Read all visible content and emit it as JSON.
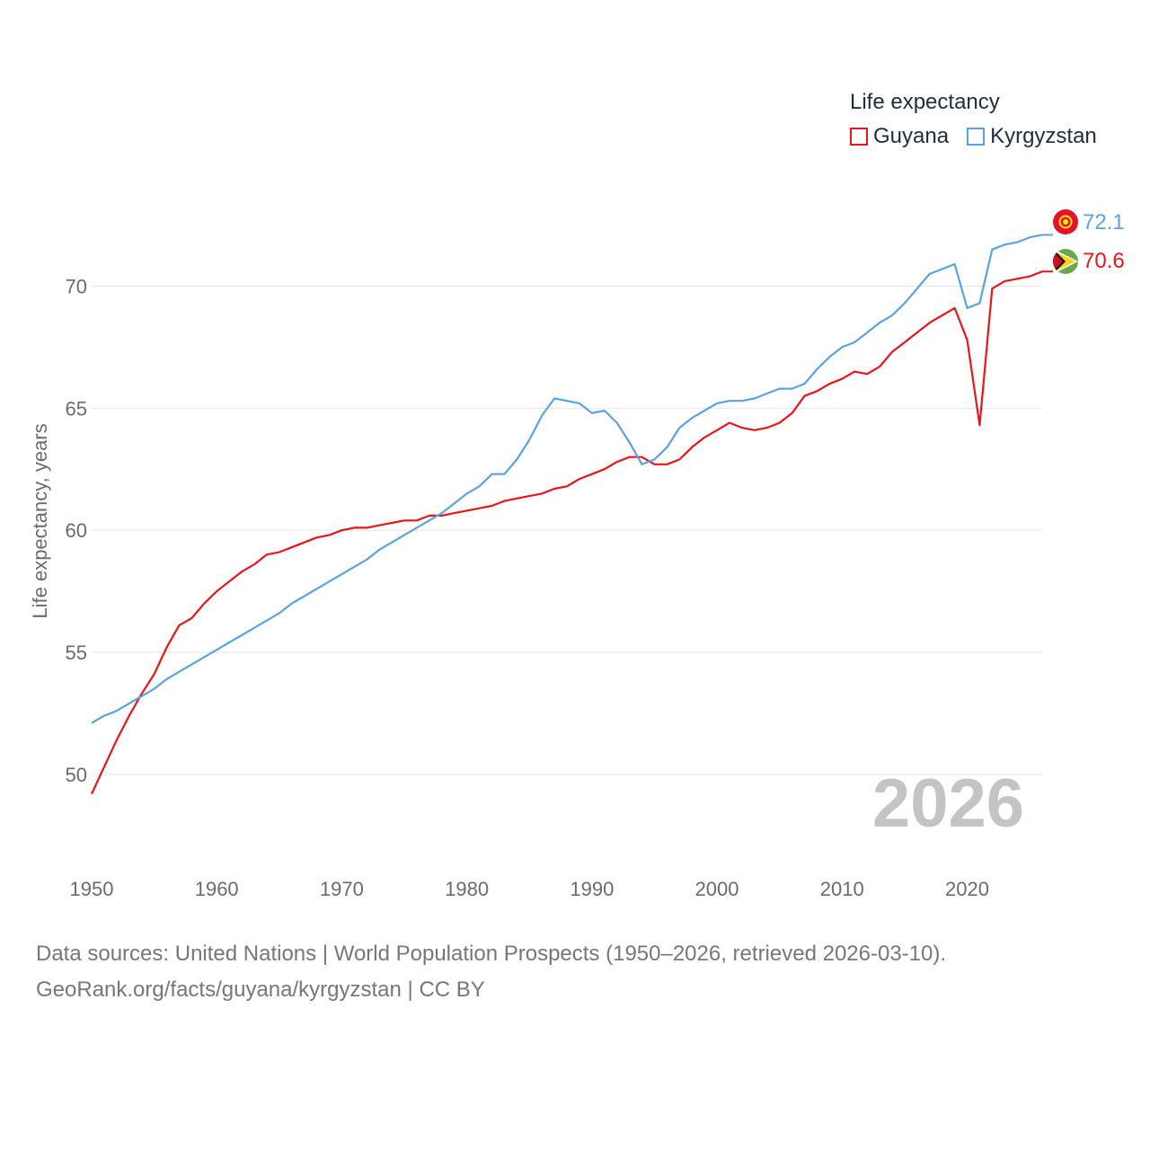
{
  "legend": {
    "title": "Life expectancy",
    "items": [
      {
        "label": "Guyana",
        "color": "#e8151b"
      },
      {
        "label": "Kyrgyzstan",
        "color": "#5ba3e0"
      }
    ]
  },
  "year_label": "2026",
  "source": {
    "line1": "Data sources: United Nations | World Population Prospects (1950–2026, retrieved 2026-03-10).",
    "line2": "GeoRank.org/facts/guyana/kyrgyzstan | CC BY"
  },
  "chart_data": {
    "type": "line",
    "title": "Life expectancy",
    "xlabel": "",
    "ylabel": "Life expectancy, years",
    "xlim": [
      1950,
      2026
    ],
    "ylim": [
      48.3,
      73
    ],
    "xticks": [
      1950,
      1960,
      1970,
      1980,
      1990,
      2000,
      2010,
      2020
    ],
    "yticks": [
      50,
      55,
      60,
      65,
      70
    ],
    "x": [
      1950,
      1951,
      1952,
      1953,
      1954,
      1955,
      1956,
      1957,
      1958,
      1959,
      1960,
      1961,
      1962,
      1963,
      1964,
      1965,
      1966,
      1967,
      1968,
      1969,
      1970,
      1971,
      1972,
      1973,
      1974,
      1975,
      1976,
      1977,
      1978,
      1979,
      1980,
      1981,
      1982,
      1983,
      1984,
      1985,
      1986,
      1987,
      1988,
      1989,
      1990,
      1991,
      1992,
      1993,
      1994,
      1995,
      1996,
      1997,
      1998,
      1999,
      2000,
      2001,
      2002,
      2003,
      2004,
      2005,
      2006,
      2007,
      2008,
      2009,
      2010,
      2011,
      2012,
      2013,
      2014,
      2015,
      2016,
      2017,
      2018,
      2019,
      2020,
      2021,
      2022,
      2023,
      2024,
      2025,
      2026
    ],
    "series": [
      {
        "name": "Guyana",
        "color": "#e8151b",
        "end_label": "70.6",
        "values": [
          49.2,
          50.3,
          51.4,
          52.4,
          53.3,
          54.1,
          55.2,
          56.1,
          56.4,
          57.0,
          57.5,
          57.9,
          58.3,
          58.6,
          59.0,
          59.1,
          59.3,
          59.5,
          59.7,
          59.8,
          60.0,
          60.1,
          60.1,
          60.2,
          60.3,
          60.4,
          60.4,
          60.6,
          60.6,
          60.7,
          60.8,
          60.9,
          61.0,
          61.2,
          61.3,
          61.4,
          61.5,
          61.7,
          61.8,
          62.1,
          62.3,
          62.5,
          62.8,
          63.0,
          63.0,
          62.7,
          62.7,
          62.9,
          63.4,
          63.8,
          64.1,
          64.4,
          64.2,
          64.1,
          64.2,
          64.4,
          64.8,
          65.5,
          65.7,
          66.0,
          66.2,
          66.5,
          66.4,
          66.7,
          67.3,
          67.7,
          68.1,
          68.5,
          68.8,
          69.1,
          67.8,
          64.3,
          69.9,
          70.2,
          70.3,
          70.4,
          70.6
        ]
      },
      {
        "name": "Kyrgyzstan",
        "color": "#5ba3e0",
        "end_label": "72.1",
        "values": [
          52.1,
          52.4,
          52.6,
          52.9,
          53.2,
          53.5,
          53.9,
          54.2,
          54.5,
          54.8,
          55.1,
          55.4,
          55.7,
          56.0,
          56.3,
          56.6,
          57.0,
          57.3,
          57.6,
          57.9,
          58.2,
          58.5,
          58.8,
          59.2,
          59.5,
          59.8,
          60.1,
          60.4,
          60.7,
          61.1,
          61.5,
          61.8,
          62.3,
          62.3,
          62.9,
          63.7,
          64.7,
          65.4,
          65.3,
          65.2,
          64.8,
          64.9,
          64.4,
          63.6,
          62.7,
          62.9,
          63.4,
          64.2,
          64.6,
          64.9,
          65.2,
          65.3,
          65.3,
          65.4,
          65.6,
          65.8,
          65.8,
          66.0,
          66.6,
          67.1,
          67.5,
          67.7,
          68.1,
          68.5,
          68.8,
          69.3,
          69.9,
          70.5,
          70.7,
          70.9,
          69.1,
          69.3,
          71.5,
          71.7,
          71.8,
          72.0,
          72.1
        ]
      }
    ]
  }
}
